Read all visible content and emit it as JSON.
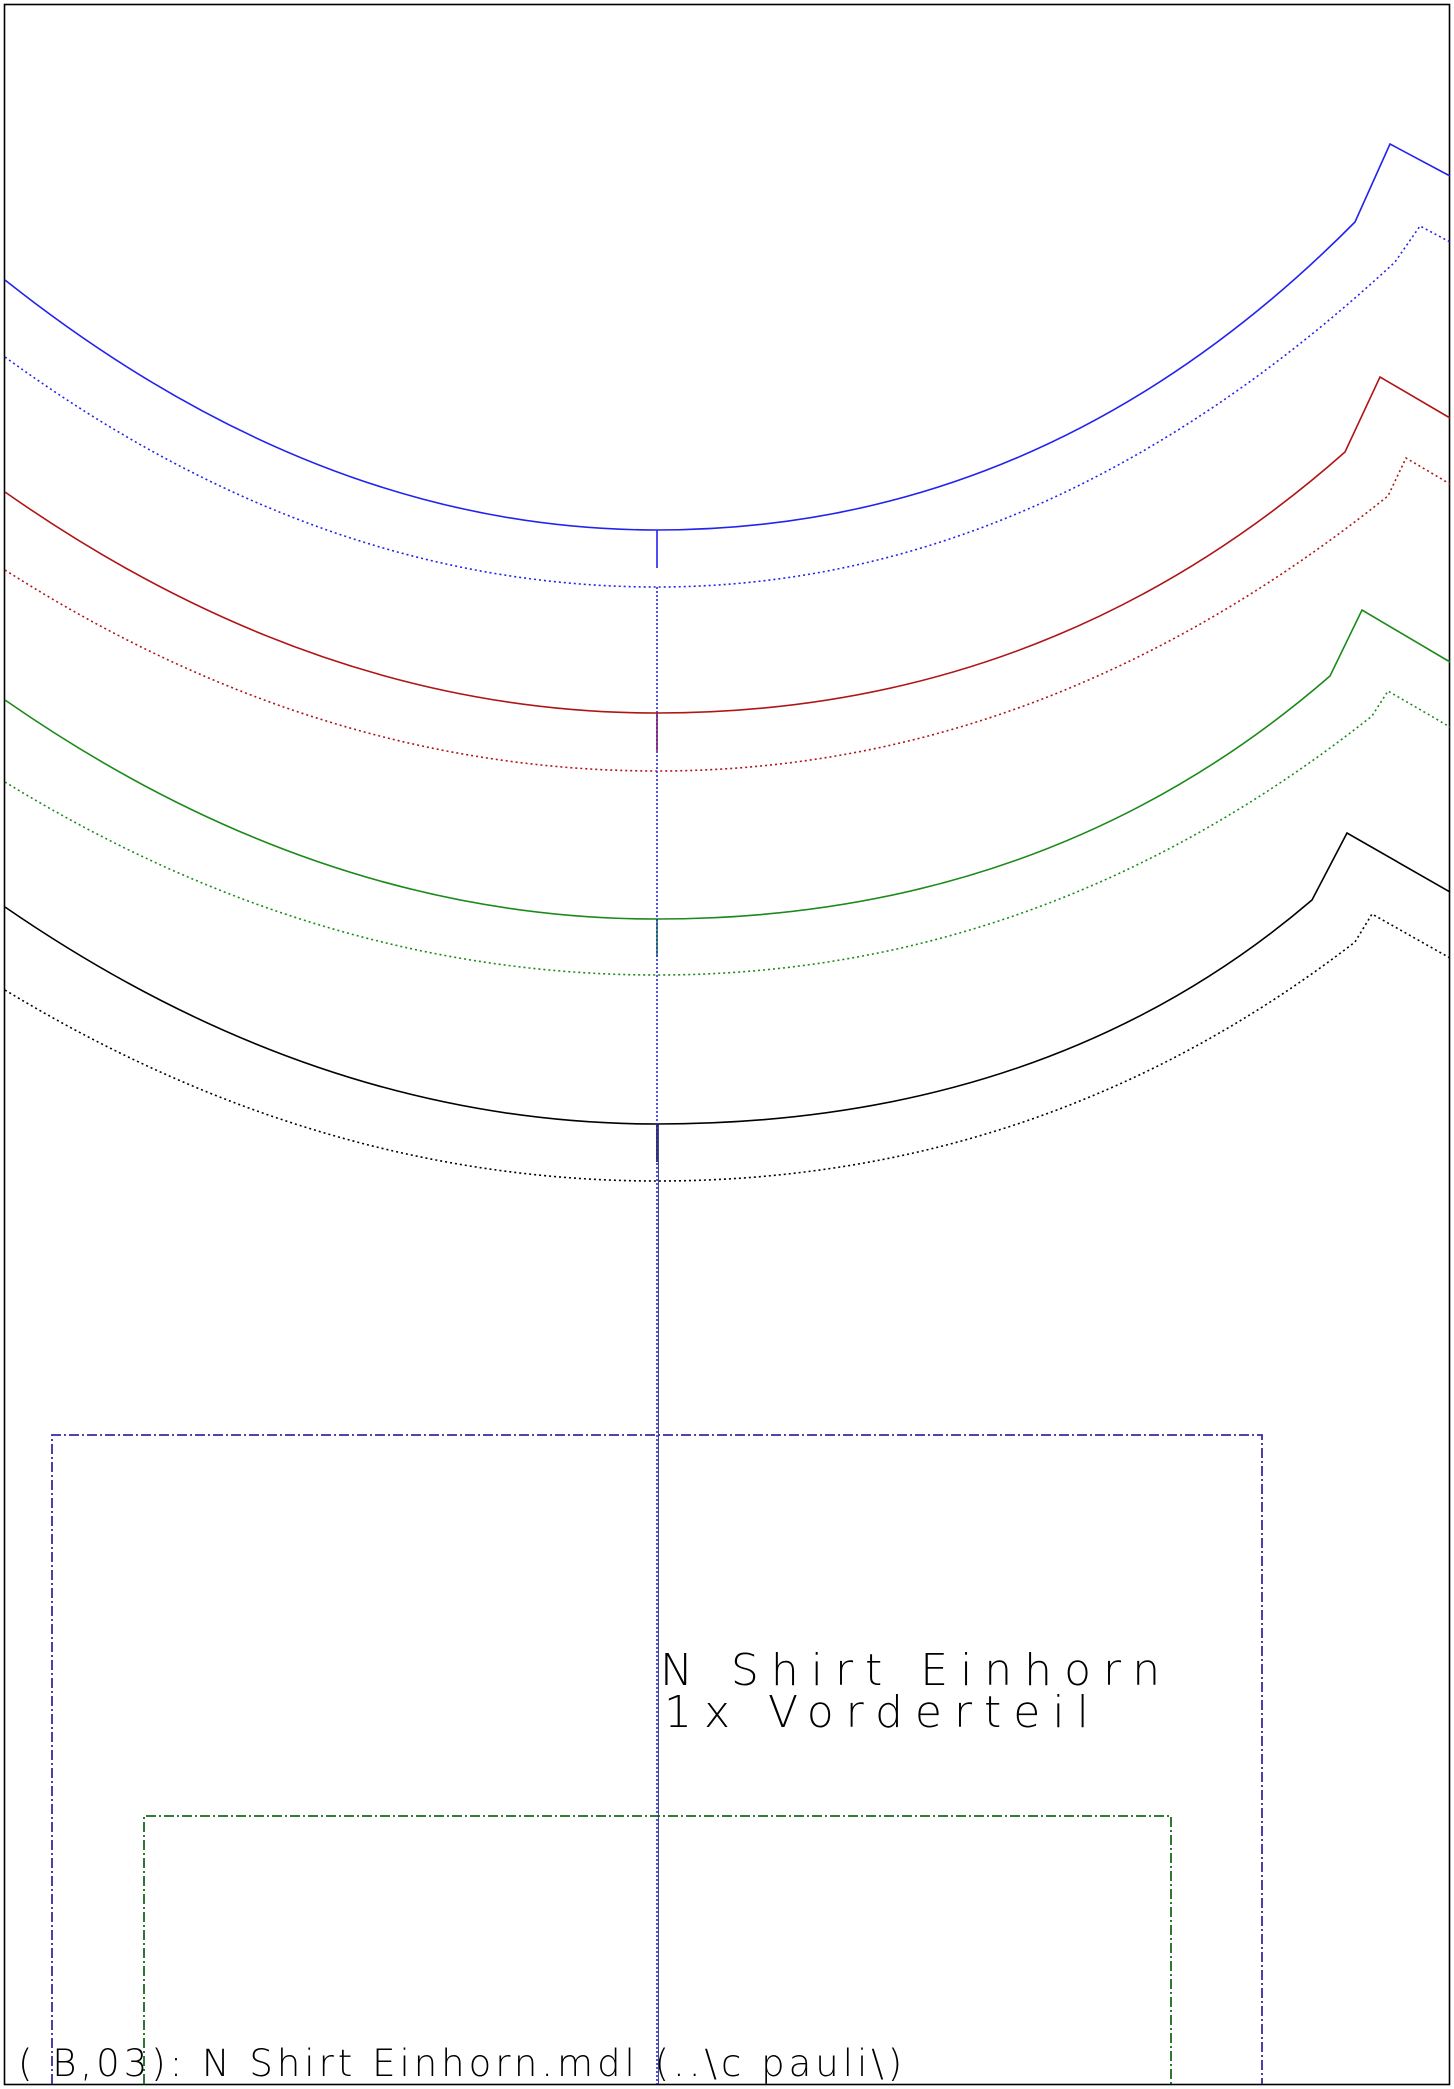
{
  "pattern": {
    "title": "N Shirt Einhorn",
    "piece": "1x Vorderteil",
    "footer": "( B,03): N Shirt Einhorn.mdl (..\\c pauli\\)"
  },
  "colors": {
    "size_1": "#2323ee",
    "size_2": "#b01515",
    "size_3": "#1b8a1b",
    "size_4": "#000000",
    "frame_outer": "#3a2aa0",
    "frame_inner": "#1a6a1a",
    "border": "#000000"
  }
}
